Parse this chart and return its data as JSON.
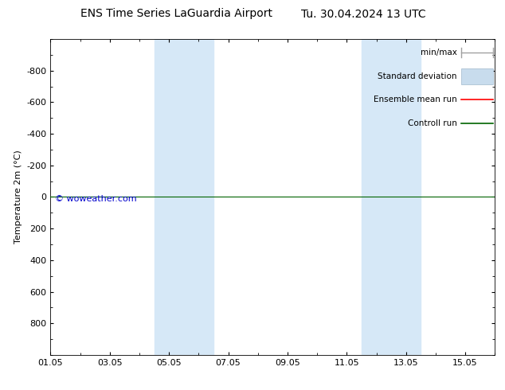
{
  "title_left": "ENS Time Series LaGuardia Airport",
  "title_right": "Tu. 30.04.2024 13 UTC",
  "ylabel": "Temperature 2m (°C)",
  "xlim": [
    0,
    15
  ],
  "ylim": [
    -1000,
    1000
  ],
  "ytick_positions": [
    -800,
    -600,
    -400,
    -200,
    0,
    200,
    400,
    600,
    800
  ],
  "ytick_labels": [
    "-800",
    "-600",
    "-400",
    "-200",
    "0",
    "200",
    "400",
    "600",
    "800"
  ],
  "xtick_positions": [
    0,
    2,
    4,
    6,
    8,
    10,
    12,
    14
  ],
  "xtick_labels": [
    "01.05",
    "03.05",
    "05.05",
    "07.05",
    "09.05",
    "11.05",
    "13.05",
    "15.05"
  ],
  "shaded_bands": [
    {
      "x_start": 3.5,
      "x_end": 5.5,
      "color": "#d6e8f7"
    },
    {
      "x_start": 10.5,
      "x_end": 12.5,
      "color": "#d6e8f7"
    }
  ],
  "line_y_green": 0,
  "line_y_red": 0,
  "line_y_grey": 0,
  "ensemble_mean_color": "#ff0000",
  "control_run_color": "#006400",
  "minmax_color": "#808080",
  "std_dev_color": "#c8dced",
  "watermark": "© woweather.com",
  "watermark_color": "#0000cc",
  "legend_items": [
    {
      "label": "min/max",
      "color": "#a0a0a0",
      "style": "minmax"
    },
    {
      "label": "Standard deviation",
      "color": "#c8dced",
      "style": "rect"
    },
    {
      "label": "Ensemble mean run",
      "color": "#ff0000",
      "style": "line"
    },
    {
      "label": "Controll run",
      "color": "#006400",
      "style": "line"
    }
  ],
  "bg_color": "#ffffff",
  "font_size_title": 10,
  "font_size_axis": 8,
  "font_size_legend": 7.5,
  "font_size_watermark": 8
}
